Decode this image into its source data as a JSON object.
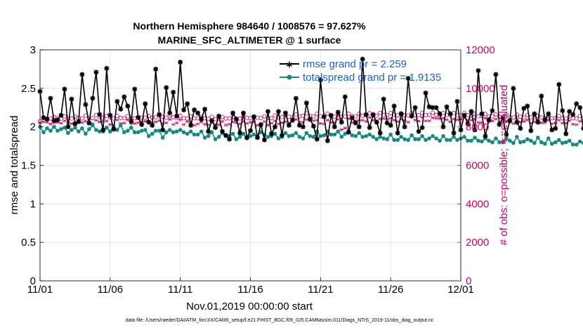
{
  "colors": {
    "rmse": "#000000",
    "spread": "#138a82",
    "obs": "#cc0066",
    "grid": "#e0e0e0",
    "legend_text": "#1a5fd6"
  },
  "chart_data": {
    "type": "line",
    "title": "Northern Hemisphere 984640 / 1008576 = 97.627%",
    "subtitle": "MARINE_SFC_ALTIMETER @ 1 surface",
    "xlabel": "Nov.01,2019 00:00:00 start",
    "ylabel": "rmse and totalspread",
    "y2label": "# of obs: o=possible; ∗=evaluated",
    "footnote": "data file: /Users/raeder/DAI/ATM_forcXX/CAM6_setup/f.e21.FHIST_BGC.f09_025.CAM6assim.011/Diags_NTrS_2019-11/obs_diag_output.nc",
    "x_ticks": [
      "11/01",
      "11/06",
      "11/11",
      "11/16",
      "11/21",
      "11/26",
      "12/01"
    ],
    "x_tick_days": [
      0,
      5,
      10,
      15,
      20,
      25,
      30
    ],
    "xlim": [
      0,
      30
    ],
    "ylim": [
      0,
      3
    ],
    "y_ticks": [
      0,
      0.5,
      1,
      1.5,
      2,
      2.5,
      3
    ],
    "y2lim": [
      0,
      12000
    ],
    "y2_ticks": [
      0,
      2000,
      4000,
      6000,
      8000,
      10000,
      12000
    ],
    "legend": [
      {
        "label": "rmse grand pr = 2.259",
        "series": "rmse"
      },
      {
        "label": "totalspread grand pr = 1.9135",
        "series": "spread"
      }
    ],
    "legend_position": "top-right",
    "x_step_days": 0.25,
    "series": [
      {
        "name": "rmse",
        "axis": "left",
        "marker": "star",
        "line": true,
        "values": [
          2.46,
          2.12,
          2.1,
          2.37,
          2.08,
          2.09,
          2.15,
          2.49,
          2.0,
          2.36,
          2.04,
          2.07,
          2.68,
          2.29,
          2.05,
          2.37,
          2.71,
          2.16,
          1.96,
          2.76,
          2.15,
          1.97,
          2.33,
          2.23,
          2.39,
          2.27,
          2.07,
          2.49,
          2.12,
          2.03,
          2.3,
          2.06,
          2.02,
          2.75,
          2.16,
          1.96,
          2.51,
          2.18,
          2.45,
          2.14,
          2.84,
          2.22,
          2.3,
          2.02,
          2.22,
          2.18,
          2.1,
          2.23,
          1.94,
          2.08,
          1.99,
          2.14,
          1.94,
          1.89,
          1.84,
          2.18,
          2.1,
          1.92,
          2.18,
          1.86,
          1.95,
          2.13,
          1.86,
          2.03,
          1.83,
          2.2,
          1.91,
          2.0,
          2.2,
          1.89,
          2.18,
          2.02,
          2.09,
          2.37,
          2.02,
          2.0,
          2.31,
          2.1,
          2.01,
          1.84,
          2.61,
          2.13,
          1.82,
          2.15,
          2.0,
          2.19,
          2.06,
          2.39,
          1.93,
          2.12,
          2.05,
          2.0,
          2.88,
          2.16,
          1.99,
          2.16,
          2.06,
          1.92,
          2.36,
          2.05,
          2.02,
          2.27,
          1.92,
          2.17,
          2.0,
          2.63,
          2.14,
          2.25,
          1.94,
          1.99,
          2.44,
          2.26,
          2.25,
          2.25,
          2.17,
          2.0,
          2.26,
          2.17,
          1.92,
          2.33,
          1.96,
          2.15,
          2.04,
          2.2,
          1.96,
          2.73,
          2.17,
          1.88,
          2.09,
          2.21,
          2.68,
          2.03,
          2.11,
          1.9,
          2.08,
          2.5,
          2.06,
          1.98,
          2.24,
          2.27,
          1.95,
          2.17,
          2.06,
          2.4,
          2.09,
          2.17,
          1.96,
          1.98,
          2.55,
          2.21,
          1.91,
          2.2,
          2.16,
          2.3,
          2.25,
          1.98,
          2.0,
          2.03,
          2.34,
          2.05,
          1.91,
          2.19,
          2.16,
          2.17,
          2.17,
          1.92,
          2.09,
          2.16,
          2.36,
          1.95,
          2.1,
          2.21,
          1.86,
          1.83,
          2.1,
          1.95,
          2.05,
          2.01,
          1.76,
          2.17,
          2.57,
          1.87,
          1.85,
          2.31,
          1.95,
          1.68,
          2.14,
          1.91,
          2.58,
          2.03,
          2.12,
          2.46,
          1.99,
          2.01,
          2.47,
          2.16,
          2.17,
          2.17,
          2.53,
          2.02,
          2.09,
          1.99,
          2.3,
          2.26,
          2.05,
          2.43,
          1.98,
          2.61,
          2.42,
          2.07,
          2.14,
          2.12,
          1.99,
          2.08,
          2.0,
          2.5,
          2.31,
          2.18,
          1.82,
          1.86,
          2.21,
          1.99,
          1.98,
          1.89,
          1.84,
          1.87,
          1.95,
          1.99,
          2.09,
          2.44,
          2.0,
          1.91,
          2.59,
          2.25,
          1.94,
          2.06,
          2.15,
          2.54,
          2.96,
          2.18,
          2.27,
          2.2,
          2.07,
          2.0,
          2.82,
          2.7,
          1.98,
          1.9,
          2.51,
          2.07,
          2.11,
          2.76,
          2.3,
          2.4,
          1.96,
          2.25,
          2.27,
          2.19,
          2.05,
          2.81,
          2.14,
          2.38,
          2.28,
          2.16,
          1.96,
          2.2,
          2.02,
          2.11,
          2.04,
          2.06
        ]
      },
      {
        "name": "totalspread",
        "axis": "left",
        "marker": "dot",
        "line": true,
        "values": [
          2.0,
          1.93,
          1.98,
          1.95,
          2.0,
          1.95,
          1.97,
          1.99,
          1.92,
          1.96,
          1.99,
          1.94,
          1.98,
          1.91,
          1.97,
          2.02,
          1.96,
          1.94,
          1.94,
          1.99,
          1.94,
          1.99,
          1.96,
          2.02,
          1.93,
          1.95,
          1.99,
          1.93,
          1.93,
          1.95,
          1.96,
          1.88,
          1.91,
          1.95,
          1.95,
          1.86,
          1.93,
          1.96,
          1.93,
          1.94,
          1.96,
          1.93,
          1.91,
          1.94,
          1.9,
          1.9,
          1.94,
          1.86,
          1.88,
          1.93,
          1.84,
          1.87,
          1.92,
          1.88,
          1.88,
          1.91,
          1.84,
          1.87,
          1.91,
          1.85,
          1.88,
          1.9,
          1.88,
          1.93,
          1.9,
          1.87,
          1.88,
          1.91,
          1.85,
          1.87,
          1.92,
          1.88,
          1.89,
          1.92,
          1.87,
          1.85,
          1.92,
          1.88,
          1.87,
          1.94,
          1.88,
          1.89,
          1.94,
          1.9,
          1.9,
          1.94,
          1.87,
          1.91,
          1.94,
          1.89,
          1.88,
          1.92,
          1.87,
          1.88,
          1.9,
          1.87,
          1.84,
          1.87,
          1.85,
          1.84,
          1.9,
          1.83,
          1.83,
          1.87,
          1.84,
          1.83,
          1.89,
          1.84,
          1.84,
          1.88,
          1.83,
          1.85,
          1.88,
          1.85,
          1.82,
          1.88,
          1.83,
          1.83,
          1.87,
          1.83,
          1.85,
          1.87,
          1.82,
          1.82,
          1.86,
          1.82,
          1.81,
          1.85,
          1.82,
          1.8,
          1.85,
          1.8,
          1.8,
          1.85,
          1.82,
          1.79,
          1.87,
          1.8,
          1.81,
          1.84,
          1.82,
          1.79,
          1.86,
          1.8,
          1.78,
          1.85,
          1.78,
          1.8,
          1.83,
          1.79,
          1.8,
          1.82,
          1.77,
          1.77,
          1.81,
          1.79,
          1.78,
          1.82,
          1.76,
          1.78,
          1.82,
          1.79,
          1.77,
          1.83,
          1.75,
          1.79,
          1.82,
          1.79,
          1.81,
          1.81,
          1.76,
          1.77,
          1.81,
          1.78,
          1.76,
          1.82,
          1.75,
          1.73,
          1.8,
          1.75,
          1.75,
          1.79,
          1.76,
          1.76,
          1.8,
          1.73,
          1.73,
          1.79,
          1.73,
          1.75,
          1.81,
          1.74,
          1.73,
          1.79,
          1.77,
          1.77,
          1.83,
          1.76,
          1.74,
          1.8,
          1.8,
          1.79,
          1.82,
          1.79,
          1.76,
          1.85,
          1.78,
          1.82,
          1.84,
          1.78,
          1.8,
          1.88,
          1.8,
          1.82,
          1.89,
          1.78,
          1.8,
          1.91,
          1.85,
          1.85,
          1.92,
          1.84,
          1.85,
          1.91,
          1.86,
          1.84,
          1.92,
          1.88,
          1.9,
          1.95,
          1.89,
          1.88,
          1.95,
          1.93,
          1.89,
          1.94,
          1.93,
          1.9,
          1.95,
          1.91,
          1.89,
          1.95,
          1.91,
          1.93,
          1.98,
          1.92,
          1.9,
          1.99,
          1.91,
          1.91,
          1.96,
          1.93,
          1.88,
          1.94,
          1.94,
          1.89,
          1.96,
          1.87,
          1.83,
          1.89,
          1.87,
          1.83,
          1.88,
          1.86,
          1.84,
          1.89,
          1.86,
          1.85,
          1.91,
          1.86,
          1.85,
          1.9,
          1.86,
          1.84,
          1.89,
          1.86
        ]
      },
      {
        "name": "obs possible",
        "axis": "right",
        "marker": "circle",
        "line": false,
        "values": [
          8290,
          8463,
          8412,
          8436,
          8515,
          8448,
          8429,
          8549,
          8449,
          8433,
          8545,
          8469,
          8437,
          8590,
          8446,
          8458,
          8621,
          8507,
          8475,
          8579,
          8494,
          8443,
          8568,
          8460,
          8451,
          8552,
          8471,
          8447,
          8521,
          8469,
          8477,
          8569,
          8477,
          8496,
          8593,
          8522,
          8480,
          8604,
          8500,
          8465,
          8571,
          8448,
          8438,
          8542,
          8446,
          8446,
          8516,
          8448,
          8423,
          8521,
          8401,
          8407,
          8517,
          8436,
          8439,
          8509,
          8426,
          8436,
          8544,
          8469,
          8453,
          8540,
          8477,
          8460,
          8546,
          8467,
          8455,
          8589,
          8497,
          8510,
          8615,
          8528,
          8509,
          8639,
          8536,
          8574,
          8697,
          8567,
          8545,
          8681,
          8558,
          8558,
          8692,
          8549,
          8527,
          8650,
          8524,
          8536,
          8679,
          8564,
          8544,
          8683,
          8581,
          8598,
          8706,
          8595,
          8584,
          8723,
          8621,
          8613,
          8718,
          8630,
          8604,
          8700,
          8597,
          8596,
          8709,
          8617,
          8605,
          8728,
          8611,
          8618,
          8733,
          8625,
          8590,
          8719,
          8620,
          8602,
          8721,
          8594,
          8598,
          8713,
          8611,
          8577,
          8678,
          8548,
          8562,
          8670,
          8530,
          8540,
          8646,
          8532,
          8516,
          8632,
          8499,
          8486,
          8637,
          8528,
          8482,
          8617,
          8498,
          8475,
          8580,
          8490,
          8461,
          8558,
          8452,
          8449,
          8567,
          8444,
          8441,
          8545,
          8452,
          8437,
          8556,
          8453,
          8452,
          8567,
          8468,
          8441,
          8554,
          8438,
          8441,
          8550,
          8445,
          8429,
          8553,
          8436,
          8437,
          8573,
          8458,
          8440,
          8546,
          8440,
          8430,
          8564,
          8461,
          8464,
          8588,
          8498,
          8473,
          8598,
          8496,
          8470,
          8588,
          8490,
          8493,
          8607,
          8520,
          8497,
          8642,
          8534,
          8524,
          8660,
          8578,
          8557,
          8659,
          8567,
          8539,
          8680,
          8583,
          8576,
          8724,
          8621,
          8620,
          8771,
          8635,
          8636,
          8766,
          8661,
          8656,
          8791,
          8681,
          8657,
          8784,
          8692,
          8689,
          8807,
          8724,
          8683,
          8826,
          8691,
          8692,
          8822,
          8707,
          8697,
          8807,
          8692,
          8684,
          8803,
          8712,
          8686,
          8806,
          8689,
          8668,
          8782,
          8665,
          8657,
          8769,
          8648,
          8615,
          8746,
          8618,
          8581,
          8708,
          8583,
          8571,
          8667,
          8556,
          8530,
          8647,
          8535,
          8504,
          8619,
          8498,
          8483,
          8579,
          8469,
          8450,
          8543,
          8445,
          8432,
          8539,
          8418,
          8387,
          8488,
          8364,
          8348,
          8453,
          0
        ]
      },
      {
        "name": "obs evaluated",
        "axis": "right",
        "marker": "star",
        "line": false,
        "values": [
          8197,
          8258,
          8239,
          8149,
          8217,
          8231,
          8191,
          8311,
          8199,
          8164,
          8186,
          8223,
          8221,
          8303,
          8162,
          8166,
          8338,
          8260,
          8293,
          8307,
          8123,
          8093,
          8358,
          8177,
          8195,
          8364,
          8169,
          8176,
          8217,
          8257,
          8287,
          8283,
          8204,
          8264,
          8316,
          8170,
          8210,
          8382,
          8125,
          8202,
          8365,
          8124,
          8273,
          8251,
          8089,
          8157,
          8249,
          8135,
          8110,
          8269,
          8132,
          8104,
          8283,
          8093,
          8139,
          8258,
          8209,
          8154,
          8285,
          8179,
          8236,
          8263,
          8086,
          8106,
          8274,
          8094,
          8190,
          8317,
          8156,
          8214,
          8260,
          8196,
          8283,
          8387,
          8245,
          8236,
          8381,
          8316,
          8320,
          8347,
          8177,
          8151,
          8350,
          8218,
          8213,
          8390,
          7854,
          7935,
          8418,
          8223,
          8317,
          8336,
          8348,
          8284,
          8488,
          8350,
          8322,
          8417,
          8428,
          8405,
          8443,
          8345,
          8273,
          8393,
          8324,
          8247,
          8530,
          8354,
          8299,
          8493,
          8311,
          8317,
          8468,
          8445,
          8426,
          8443,
          8370,
          8263,
          8402,
          8364,
          8400,
          8460,
          8355,
          8347,
          8391,
          8235,
          8234,
          8451,
          8261,
          8309,
          8403,
          8238,
          8256,
          8308,
          8229,
          8175,
          8416,
          8255,
          8286,
          8359,
          8189,
          8257,
          8345,
          8209,
          8223,
          8350,
          8162,
          8205,
          8349,
          8196,
          8191,
          8326,
          8138,
          8110,
          8292,
          8134,
          8118,
          8254,
          8216,
          8164,
          8322,
          8211,
          8196,
          8352,
          8143,
          8177,
          8297,
          8150,
          8187,
          8343,
          8178,
          8131,
          8300,
          8173,
          8184,
          8381,
          8200,
          8199,
          8389,
          8206,
          8235,
          8331,
          8219,
          8241,
          8373,
          8250,
          8183,
          8363,
          8181,
          8174,
          8287,
          8311,
          8264,
          8407,
          8207,
          8301,
          8443,
          8323,
          8260,
          8346,
          8288,
          8345,
          8445,
          8260,
          8336,
          8510,
          8405,
          8340,
          8519,
          8363,
          8303,
          8454,
          8435,
          8425,
          8520,
          8420,
          8416,
          8526,
          8451,
          8324,
          8513,
          8450,
          8456,
          8528,
          8381,
          8410,
          8511,
          8462,
          8386,
          8456,
          8413,
          8378,
          8510,
          8385,
          8409,
          8573,
          8371,
          8340,
          8488,
          8345,
          8296,
          8449,
          8271,
          8300,
          8424,
          8342,
          8207,
          8407,
          8288,
          8203,
          8345,
          8270,
          8175,
          8314,
          8262,
          8201,
          8307,
          8226,
          8193,
          8236,
          8108,
          8144,
          8174,
          8084,
          8096,
          8222,
          0
        ]
      }
    ]
  }
}
